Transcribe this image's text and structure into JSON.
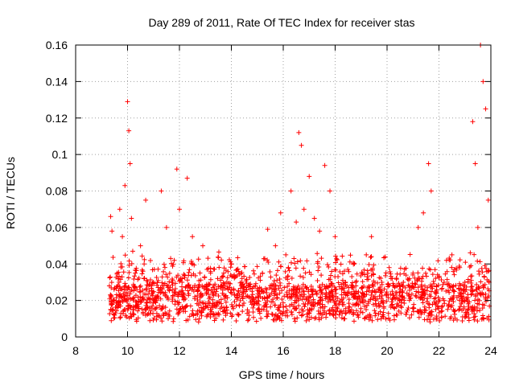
{
  "chart_data": {
    "type": "scatter",
    "title": "Day 289 of 2011, Rate Of TEC Index for receiver stas",
    "xlabel": "GPS time / hours",
    "ylabel": "ROTI / TECUs",
    "xlim": [
      8,
      24
    ],
    "ylim": [
      0,
      0.16
    ],
    "xticks": [
      "8",
      "10",
      "12",
      "14",
      "16",
      "18",
      "20",
      "22",
      "24"
    ],
    "yticks": [
      "0",
      "0.02",
      "0.04",
      "0.06",
      "0.08",
      "0.1",
      "0.12",
      "0.14",
      "0.16"
    ],
    "grid": true,
    "marker": "plus",
    "color": "#ff0000",
    "series": [
      {
        "x": [
          9.3,
          9.35,
          9.4,
          9.45,
          9.5,
          9.6,
          9.7,
          9.8,
          9.9,
          10.0,
          10.05,
          10.1,
          10.15,
          10.2,
          10.3,
          10.5,
          10.7,
          11.0,
          11.3,
          11.5,
          11.8,
          11.9,
          12.0,
          12.1,
          12.3,
          12.5,
          12.9,
          13.2,
          13.6,
          14.0,
          14.4,
          14.8,
          15.2,
          15.4,
          15.7,
          15.9,
          16.1,
          16.3,
          16.5,
          16.6,
          16.7,
          16.8,
          17.0,
          17.2,
          17.4,
          17.6,
          17.8,
          18.0,
          18.4,
          18.8,
          19.2,
          19.4,
          19.8,
          20.2,
          20.6,
          21.0,
          21.2,
          21.4,
          21.6,
          21.7,
          21.9,
          22.2,
          22.5,
          22.8,
          23.0,
          23.3,
          23.4,
          23.5,
          23.6,
          23.7,
          23.8,
          23.9
        ],
        "y": [
          0.028,
          0.066,
          0.058,
          0.02,
          0.012,
          0.035,
          0.07,
          0.055,
          0.083,
          0.129,
          0.113,
          0.095,
          0.065,
          0.047,
          0.035,
          0.05,
          0.075,
          0.03,
          0.08,
          0.06,
          0.042,
          0.092,
          0.07,
          0.03,
          0.087,
          0.055,
          0.05,
          0.035,
          0.028,
          0.04,
          0.03,
          0.025,
          0.035,
          0.059,
          0.05,
          0.068,
          0.045,
          0.08,
          0.063,
          0.112,
          0.105,
          0.07,
          0.088,
          0.065,
          0.058,
          0.094,
          0.08,
          0.055,
          0.03,
          0.028,
          0.045,
          0.055,
          0.03,
          0.025,
          0.028,
          0.035,
          0.06,
          0.068,
          0.095,
          0.08,
          0.025,
          0.03,
          0.045,
          0.038,
          0.03,
          0.118,
          0.095,
          0.06,
          0.16,
          0.14,
          0.125,
          0.075
        ]
      }
    ]
  }
}
